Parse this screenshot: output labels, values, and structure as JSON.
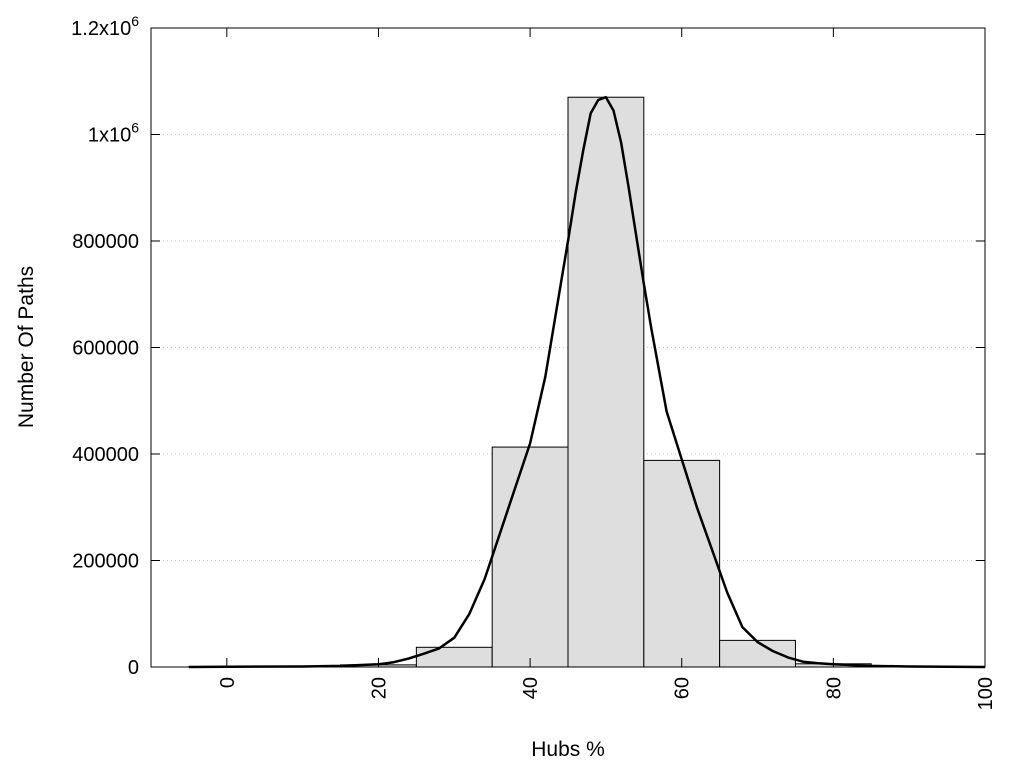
{
  "chart_data": {
    "type": "bar",
    "title": "",
    "xlabel": "Hubs %",
    "ylabel": "Number Of Paths",
    "xlim": [
      -10,
      100
    ],
    "ylim": [
      0,
      1200000
    ],
    "grid": "horizontal dotted",
    "bar_fill": "#dedede",
    "bar_stroke": "#000000",
    "curve_color": "#000000",
    "x_ticks": [
      {
        "value": 0,
        "label": "0"
      },
      {
        "value": 20,
        "label": "20"
      },
      {
        "value": 40,
        "label": "40"
      },
      {
        "value": 60,
        "label": "60"
      },
      {
        "value": 80,
        "label": "80"
      },
      {
        "value": 100,
        "label": "100"
      }
    ],
    "y_ticks": [
      {
        "value": 0,
        "label": "0"
      },
      {
        "value": 200000,
        "label": "200000"
      },
      {
        "value": 400000,
        "label": "400000"
      },
      {
        "value": 600000,
        "label": "600000"
      },
      {
        "value": 800000,
        "label": "800000"
      },
      {
        "value": 1000000,
        "label": "1x10",
        "sup": "6"
      },
      {
        "value": 1200000,
        "label": "1.2x10",
        "sup": "6"
      }
    ],
    "bins": [
      {
        "center": 0,
        "width": 10,
        "value": 800
      },
      {
        "center": 10,
        "width": 10,
        "value": 1000
      },
      {
        "center": 20,
        "width": 10,
        "value": 4000
      },
      {
        "center": 30,
        "width": 10,
        "value": 37000
      },
      {
        "center": 40,
        "width": 10,
        "value": 413000
      },
      {
        "center": 50,
        "width": 10,
        "value": 1070000
      },
      {
        "center": 60,
        "width": 10,
        "value": 388000
      },
      {
        "center": 70,
        "width": 10,
        "value": 50000
      },
      {
        "center": 80,
        "width": 10,
        "value": 6000
      },
      {
        "center": 90,
        "width": 10,
        "value": 1000
      }
    ],
    "curve": {
      "x": [
        -5,
        0,
        10,
        15,
        20,
        22,
        24,
        26,
        28,
        30,
        32,
        34,
        36,
        38,
        40,
        42,
        44,
        45,
        46,
        47,
        48,
        49,
        50,
        51,
        52,
        53,
        54,
        55,
        56,
        58,
        60,
        62,
        64,
        66,
        68,
        70,
        72,
        74,
        76,
        78,
        80,
        85,
        90,
        100
      ],
      "y": [
        0,
        500,
        1000,
        2000,
        5000,
        9000,
        16000,
        25000,
        35000,
        55000,
        100000,
        165000,
        250000,
        335000,
        420000,
        545000,
        715000,
        800000,
        890000,
        970000,
        1040000,
        1065000,
        1070000,
        1045000,
        985000,
        900000,
        810000,
        720000,
        635000,
        480000,
        390000,
        300000,
        220000,
        140000,
        75000,
        47000,
        30000,
        18000,
        10000,
        7000,
        5000,
        2000,
        1000,
        0
      ]
    }
  }
}
